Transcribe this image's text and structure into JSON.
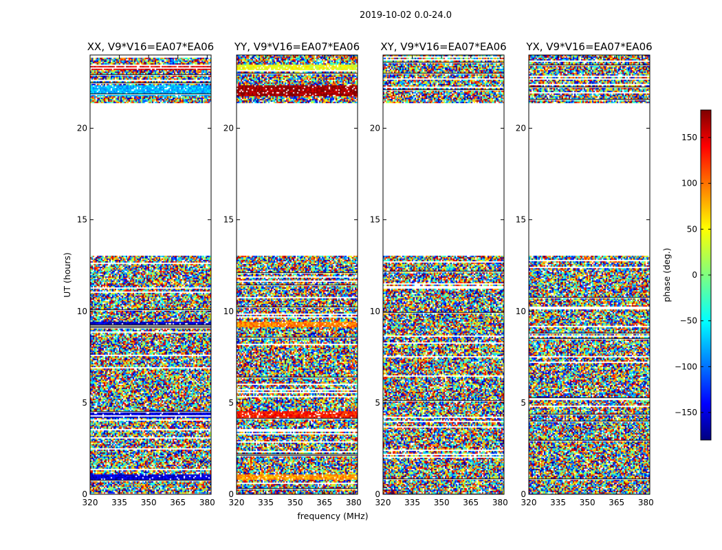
{
  "suptitle": "2019-10-02 0.0-24.0",
  "chart_data": {
    "type": "heatmap",
    "xlabel": "frequency (MHz)",
    "ylabel": "UT (hours)",
    "xlim": [
      320,
      382
    ],
    "ylim": [
      0,
      24
    ],
    "xticks": [
      "320",
      "335",
      "350",
      "365",
      "380"
    ],
    "xtick_values": [
      320,
      335,
      350,
      365,
      380
    ],
    "yticks": [
      "0",
      "5",
      "10",
      "15",
      "20"
    ],
    "ytick_values": [
      0,
      5,
      10,
      15,
      20
    ],
    "colorbar": {
      "label": "phase (deg.)",
      "range": [
        -180,
        180
      ],
      "ticks": [
        "−150",
        "−100",
        "−50",
        "0",
        "50",
        "100",
        "150"
      ],
      "tick_values": [
        -150,
        -100,
        -50,
        0,
        50,
        100,
        150
      ],
      "colormap": "jet"
    },
    "data_gaps_hours": [
      [
        13.1,
        21.4
      ]
    ],
    "panels": [
      {
        "title": "XX, V9*V16=EA07*EA06",
        "coherent_bands": [
          [
            0.8,
            1.1,
            -150
          ],
          [
            4.2,
            4.6,
            -150
          ],
          [
            9.2,
            9.5,
            -150
          ],
          [
            21.8,
            22.4,
            -70
          ],
          [
            23.2,
            23.5,
            150
          ]
        ]
      },
      {
        "title": "YY, V9*V16=EA07*EA06",
        "coherent_bands": [
          [
            0.8,
            1.1,
            80
          ],
          [
            4.2,
            4.6,
            130
          ],
          [
            9.2,
            9.5,
            90
          ],
          [
            21.8,
            22.4,
            170
          ],
          [
            23.2,
            23.5,
            40
          ]
        ]
      },
      {
        "title": "XY, V9*V16=EA07*EA06",
        "coherent_bands": []
      },
      {
        "title": "YX, V9*V16=EA07*EA06",
        "coherent_bands": []
      }
    ]
  }
}
